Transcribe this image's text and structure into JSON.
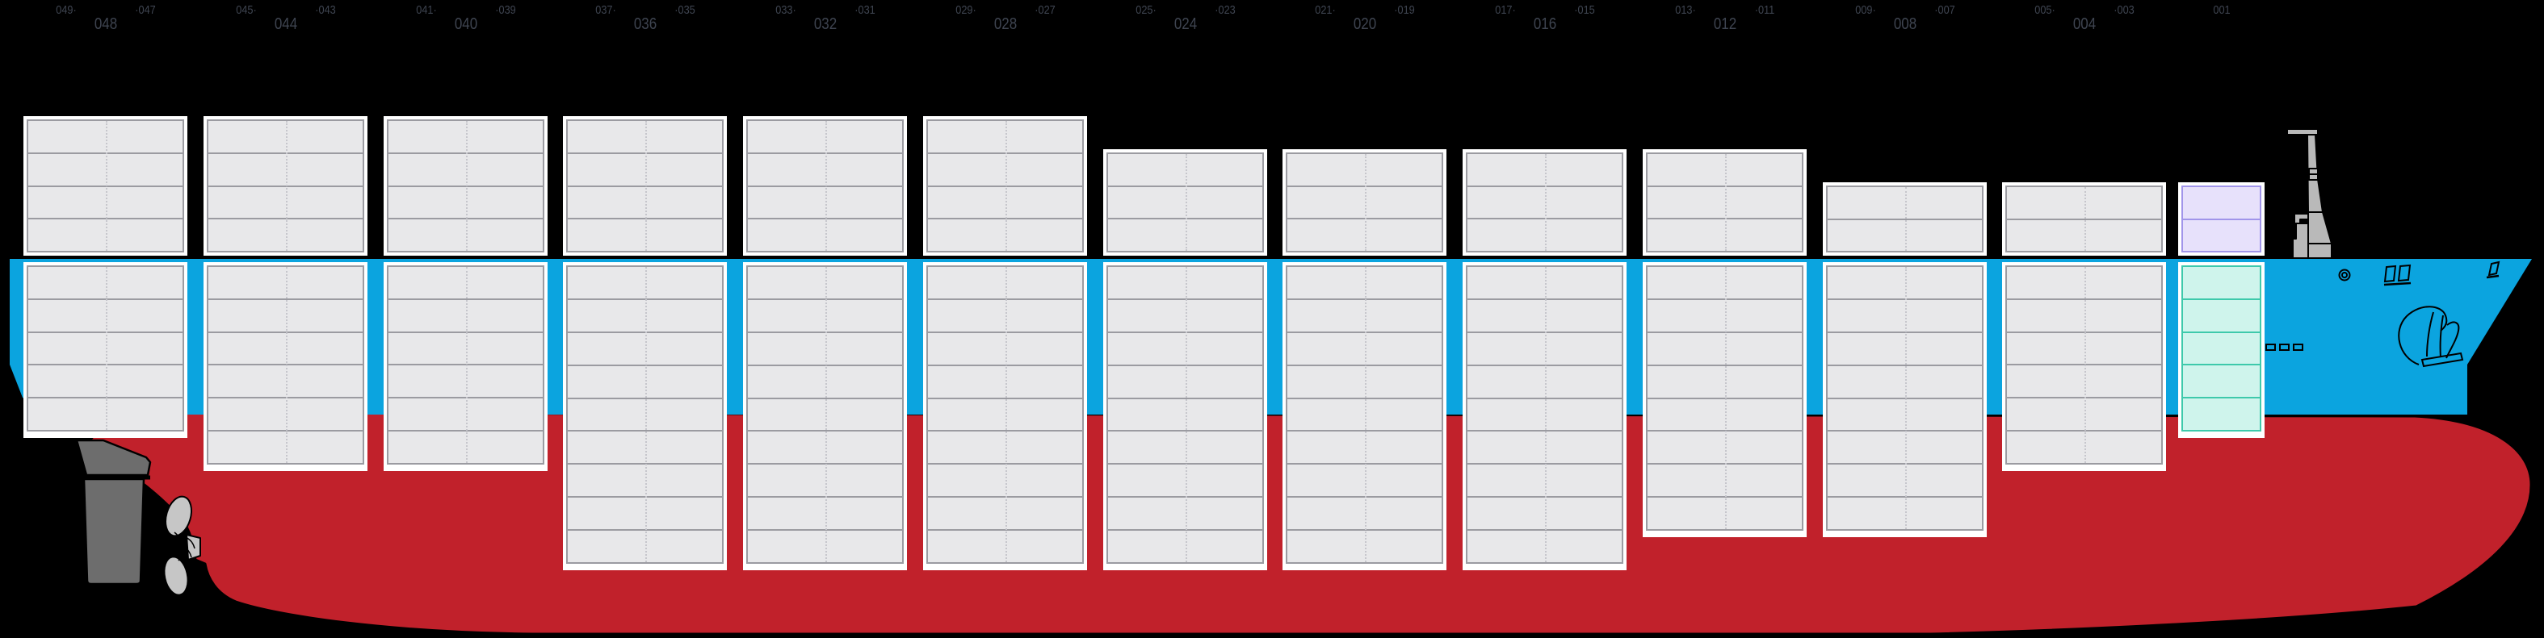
{
  "view": {
    "name": "vessel-side-profile",
    "description": "Container ship bay profile with stacked container tiers above and below deck"
  },
  "colors": {
    "background": "#000000",
    "sea_blue": "#0ba4df",
    "hull_red": "#c1212b",
    "container_fill": "#e8e8ea",
    "container_line": "#9b9ba1",
    "container_frame": "#ffffff",
    "purple_fill": "#e7e1fb",
    "purple_line": "#a195ea",
    "teal_fill": "#cff4ec",
    "teal_line": "#3ec9ab",
    "label_color": "#3e4450",
    "rudder_gray": "#6d6d6d",
    "propeller_gray": "#c6c6c6",
    "mast_gray": "#b9b9b9"
  },
  "bays": [
    {
      "even_label": "048",
      "odd_left_label": "049·",
      "odd_right_label": "·047",
      "tiers_above": 4,
      "tiers_below": 5,
      "variant": "standard"
    },
    {
      "even_label": "044",
      "odd_left_label": "045·",
      "odd_right_label": "·043",
      "tiers_above": 4,
      "tiers_below": 6,
      "variant": "standard"
    },
    {
      "even_label": "040",
      "odd_left_label": "041·",
      "odd_right_label": "·039",
      "tiers_above": 4,
      "tiers_below": 6,
      "variant": "standard"
    },
    {
      "even_label": "036",
      "odd_left_label": "037·",
      "odd_right_label": "·035",
      "tiers_above": 4,
      "tiers_below": 9,
      "variant": "standard"
    },
    {
      "even_label": "032",
      "odd_left_label": "033·",
      "odd_right_label": "·031",
      "tiers_above": 4,
      "tiers_below": 9,
      "variant": "standard"
    },
    {
      "even_label": "028",
      "odd_left_label": "029·",
      "odd_right_label": "·027",
      "tiers_above": 4,
      "tiers_below": 9,
      "variant": "standard"
    },
    {
      "even_label": "024",
      "odd_left_label": "025·",
      "odd_right_label": "·023",
      "tiers_above": 3,
      "tiers_below": 9,
      "variant": "standard"
    },
    {
      "even_label": "020",
      "odd_left_label": "021·",
      "odd_right_label": "·019",
      "tiers_above": 3,
      "tiers_below": 9,
      "variant": "standard"
    },
    {
      "even_label": "016",
      "odd_left_label": "017·",
      "odd_right_label": "·015",
      "tiers_above": 3,
      "tiers_below": 9,
      "variant": "standard"
    },
    {
      "even_label": "012",
      "odd_left_label": "013·",
      "odd_right_label": "·011",
      "tiers_above": 3,
      "tiers_below": 8,
      "variant": "standard"
    },
    {
      "even_label": "008",
      "odd_left_label": "009·",
      "odd_right_label": "·007",
      "tiers_above": 2,
      "tiers_below": 8,
      "variant": "standard"
    },
    {
      "even_label": "004",
      "odd_left_label": "005·",
      "odd_right_label": "·003",
      "tiers_above": 2,
      "tiers_below": 6,
      "variant": "standard"
    },
    {
      "odd_center_label": "001",
      "tiers_above": 2,
      "tiers_below": 5,
      "variant": "special"
    }
  ]
}
